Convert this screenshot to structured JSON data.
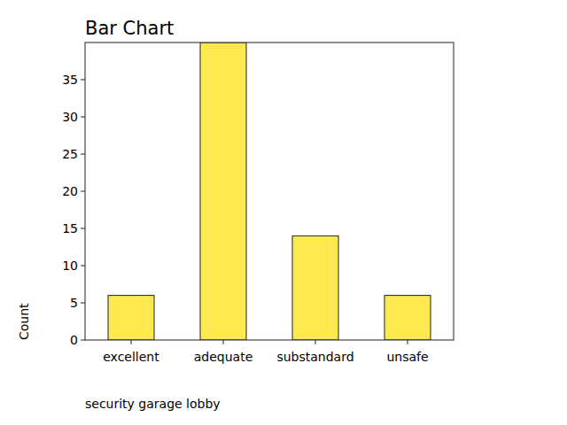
{
  "chart_data": {
    "type": "bar",
    "title": "Bar Chart",
    "x_label": "security garage lobby",
    "y_label": "Count",
    "categories": [
      "excellent",
      "adequate",
      "substandard",
      "unsafe"
    ],
    "values": [
      6,
      40,
      14,
      6
    ],
    "color": "#fce94f",
    "ylim": [
      0,
      40
    ],
    "yticks": [
      0,
      5,
      10,
      15,
      20,
      25,
      30,
      35
    ],
    "grid": false
  }
}
